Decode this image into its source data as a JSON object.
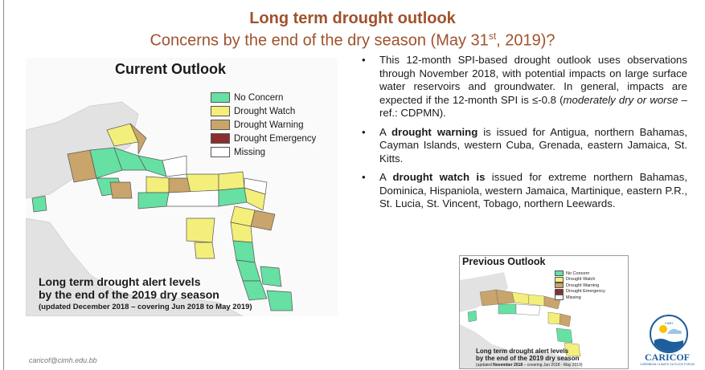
{
  "header": {
    "title": "Long term drought outlook",
    "subtitle_pre": "Concerns by the end of the dry season (May 31",
    "subtitle_sup": "st",
    "subtitle_post": ", 2019)?"
  },
  "current_map": {
    "title": "Current Outlook",
    "legend": [
      {
        "label": "No Concern",
        "color": "#66e0a3"
      },
      {
        "label": "Drought Watch",
        "color": "#f3ef7a"
      },
      {
        "label": "Drought Warning",
        "color": "#c9a46b"
      },
      {
        "label": "Drought Emergency",
        "color": "#8b2d2d"
      },
      {
        "label": "Missing",
        "color": "#ffffff"
      }
    ],
    "caption_line1": "Long term drought alert levels",
    "caption_line2": "by the end of the 2019 dry season",
    "caption_line3": "(updated December 2018 – covering Jun 2018 to May 2019)"
  },
  "bullets": {
    "b1": "This 12-month SPI-based drought outlook uses observations through November 2018, with potential impacts on large surface water reservoirs and groundwater. In general, impacts are expected if the 12-month SPI is ≤-0.8 (",
    "b1_italic": "moderately dry or worse",
    "b1_end": " – ref.: CDPMN).",
    "b2_pre": "A ",
    "b2_bold": "drought warning",
    "b2_post": " is issued for Antigua, northern Bahamas, Cayman Islands, western Cuba, Grenada, eastern Jamaica, St. Kitts.",
    "b3_pre": "A ",
    "b3_bold": "drought watch is",
    "b3_post": " issued for extreme northern Bahamas, Dominica, Hispaniola, western Jamaica, Martinique, eastern P.R., St. Lucia, St. Vincent, Tobago, northern Leewards."
  },
  "previous_map": {
    "title": "Previous Outlook",
    "legend": [
      "No Concern",
      "Drought Watch",
      "Drought Warning",
      "Drought Emergency",
      "Missing"
    ],
    "caption_line1": "Long term drought alert levels",
    "caption_line2": "by the end of the 2019 dry season",
    "caption_line3_pre": "(updated ",
    "caption_line3_bold": "November 2018",
    "caption_line3_post": " – covering Jun 2018 - May 2019)"
  },
  "footer": {
    "email": "caricof@cimh.edu.bb",
    "logo_text": "CARICOF",
    "logo_sub": "CARIBBEAN CLIMATE OUTLOOK FORUM",
    "logo_top": "CIMH",
    "logo_icon": "caricof-logo-icon"
  }
}
